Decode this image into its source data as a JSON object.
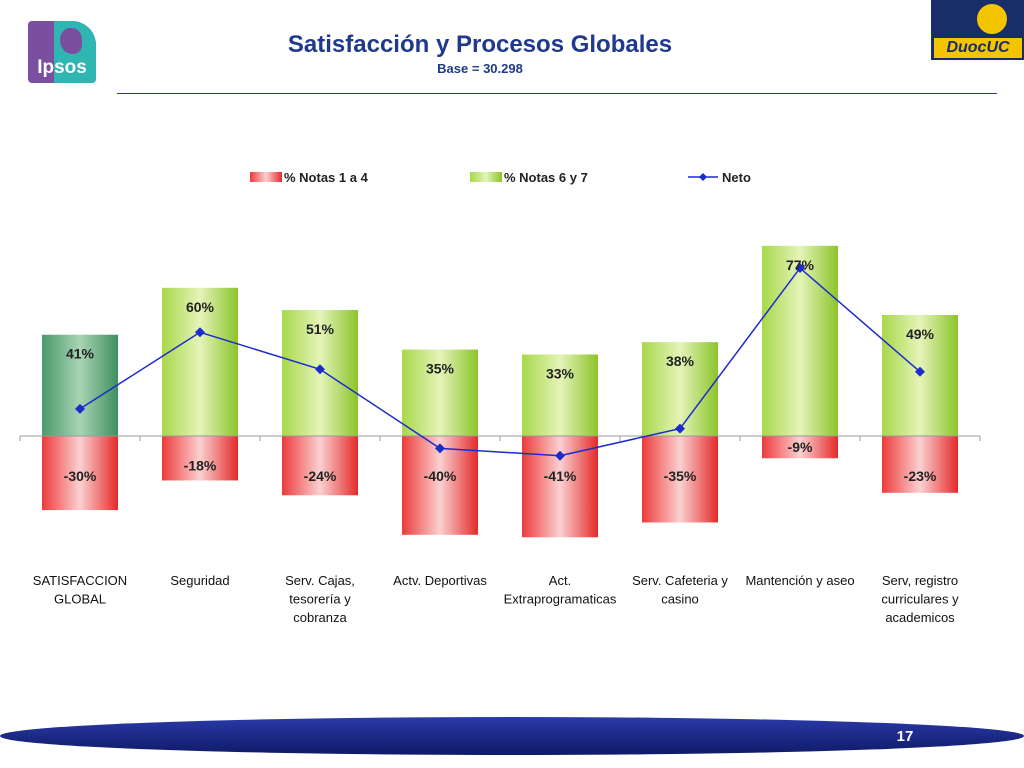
{
  "header": {
    "title": "Satisfacción y Procesos Globales",
    "subtitle": "Base = 30.298"
  },
  "logos": {
    "left": "Ipsos",
    "right": "DuocUC"
  },
  "chart_data": {
    "type": "bar",
    "categories": [
      [
        "SATISFACCION",
        "GLOBAL"
      ],
      [
        "Seguridad"
      ],
      [
        "Serv. Cajas,",
        "tesorería y",
        "cobranza"
      ],
      [
        "Actv. Deportivas"
      ],
      [
        "Act.",
        "Extraprogramaticas"
      ],
      [
        "Serv. Cafeteria y",
        "casino"
      ],
      [
        "Mantención y aseo"
      ],
      [
        "Serv, registro",
        "curriculares y",
        "academicos"
      ]
    ],
    "series": [
      {
        "name": "% Notas 1 a 4",
        "values": [
          -30,
          -18,
          -24,
          -40,
          -41,
          -35,
          -9,
          -23
        ],
        "labels": [
          "-30%",
          "-18%",
          "-24%",
          "-40%",
          "-41%",
          "-35%",
          "-9%",
          "-23%"
        ],
        "color": "#e8302e"
      },
      {
        "name": "% Notas 6 y 7",
        "values": [
          41,
          60,
          51,
          35,
          33,
          38,
          77,
          49
        ],
        "labels": [
          "41%",
          "60%",
          "51%",
          "35%",
          "33%",
          "38%",
          "77%",
          "49%"
        ],
        "color": "#8fca2a",
        "highlight_color": "#3d8f5e"
      },
      {
        "name": "Neto",
        "values": [
          11,
          42,
          27,
          -5,
          -8,
          3,
          68,
          26
        ],
        "color": "#1c2ccc"
      }
    ],
    "ylim": [
      -45,
      80
    ],
    "legend_position": "top",
    "grid": false
  },
  "footer": {
    "page": "17"
  }
}
